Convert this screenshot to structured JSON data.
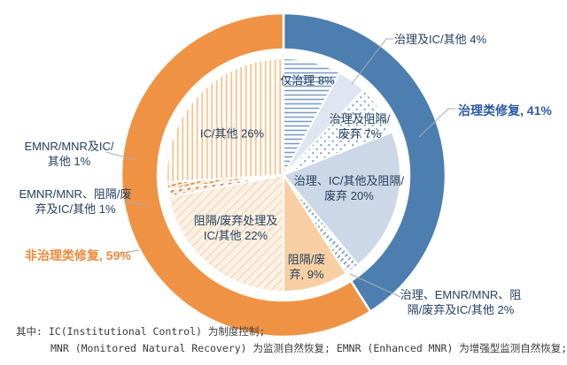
{
  "chart_data": {
    "type": "pie",
    "subtype": "donut-ring-with-inner-pie",
    "units": "%",
    "direction": "clockwise",
    "start_angle_deg": 0,
    "outer_ring": [
      {
        "label": "治理类修复",
        "value": 41,
        "color": "#4d7eb0"
      },
      {
        "label": "非治理类修复",
        "value": 59,
        "color": "#f09244"
      }
    ],
    "inner_slices": [
      {
        "label": "仅治理",
        "value": 8,
        "fill": "pattern:hlines-blue"
      },
      {
        "label": "治理及IC/其他",
        "value": 4,
        "fill": "#dfe6f1"
      },
      {
        "label": "治理及阻隔/废弃",
        "value": 7,
        "fill": "pattern:dots-blue"
      },
      {
        "label": "治理、IC/其他及阻隔/废弃",
        "value": 20,
        "fill": "#ccd7e7"
      },
      {
        "label": "治理、EMNR/MNR、阻隔/废弃及IC/其他",
        "value": 2,
        "fill": "pattern:diag-blue"
      },
      {
        "label": "阻隔/废弃",
        "value": 9,
        "fill": "#f8cfa3"
      },
      {
        "label": "阻隔/废弃处理及IC/其他",
        "value": 22,
        "fill": "pattern:diag-orange"
      },
      {
        "label": "EMNR/MNR、阻隔/废弃及IC/其他",
        "value": 1,
        "fill": "pattern:dash-darkorange"
      },
      {
        "label": "EMNR/MNR及IC/其他",
        "value": 1,
        "fill": "pattern:dash-orange"
      },
      {
        "label": "IC/其他",
        "value": 26,
        "fill": "pattern:vlines-orange"
      }
    ],
    "legend_position": "callout-labels"
  },
  "labels": {
    "slice_8": "仅治理 8%",
    "slice_4": "治理及IC/其他 4%",
    "slice_7": "治理及阻隔/废弃 7%",
    "slice_20": "治理、IC/其他及阻隔/废弃 20%",
    "slice_2": "治理、EMNR/MNR、阻隔/废弃及IC/其他 2%",
    "slice_9": "阻隔/废弃, 9%",
    "slice_22": "阻隔/废弃处理及IC/其他 22%",
    "slice_emnr_block": "EMNR/MNR、阻隔/废弃及IC/其他 1%",
    "slice_emnr_ic": "EMNR/MNR及IC/其他 1%",
    "slice_26": "IC/其他 26%",
    "group_blue": "治理类修复, 41%",
    "group_orange": "非治理类修复, 59%"
  },
  "footnote": {
    "line1": "其中: IC(Institutional Control) 为制度控制;",
    "line2": "MNR (Monitored Natural Recovery) 为监测自然恢复;  EMNR (Enhanced MNR) 为增强型监测自然恢复;"
  },
  "colors": {
    "ring_blue": "#4d7eb0",
    "ring_orange": "#f09244",
    "label_navy": "#24405f",
    "group_label_blue": "#2b5aa7",
    "group_label_orange": "#ed8a3c",
    "leader_line": "#ababab"
  }
}
